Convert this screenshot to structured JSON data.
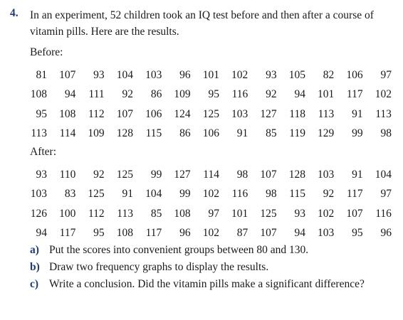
{
  "question": {
    "number": "4.",
    "text": "In an experiment, 52 children took an IQ test before and then after a course of vitamin pills. Here are the results."
  },
  "before": {
    "label": "Before:",
    "rows": [
      [
        "81",
        "107",
        "93",
        "104",
        "103",
        "96",
        "101",
        "102",
        "93",
        "105",
        "82",
        "106",
        "97"
      ],
      [
        "108",
        "94",
        "111",
        "92",
        "86",
        "109",
        "95",
        "116",
        "92",
        "94",
        "101",
        "117",
        "102"
      ],
      [
        "95",
        "108",
        "112",
        "107",
        "106",
        "124",
        "125",
        "103",
        "127",
        "118",
        "113",
        "91",
        "113"
      ],
      [
        "113",
        "114",
        "109",
        "128",
        "115",
        "86",
        "106",
        "91",
        "85",
        "119",
        "129",
        "99",
        "98"
      ]
    ]
  },
  "after": {
    "label": "After:",
    "rows": [
      [
        "93",
        "110",
        "92",
        "125",
        "99",
        "127",
        "114",
        "98",
        "107",
        "128",
        "103",
        "91",
        "104"
      ],
      [
        "103",
        "83",
        "125",
        "91",
        "104",
        "99",
        "102",
        "116",
        "98",
        "115",
        "92",
        "117",
        "97"
      ],
      [
        "126",
        "100",
        "112",
        "113",
        "85",
        "108",
        "97",
        "101",
        "125",
        "93",
        "102",
        "107",
        "116"
      ],
      [
        "94",
        "117",
        "95",
        "108",
        "117",
        "96",
        "102",
        "87",
        "107",
        "94",
        "103",
        "95",
        "96"
      ]
    ]
  },
  "parts": [
    {
      "letter": "a)",
      "text": "Put the scores into convenient groups between 80 and 130."
    },
    {
      "letter": "b)",
      "text": "Draw two frequency graphs to display the results."
    },
    {
      "letter": "c)",
      "text": "Write a conclusion. Did the vitamin pills make a significant difference?"
    }
  ]
}
